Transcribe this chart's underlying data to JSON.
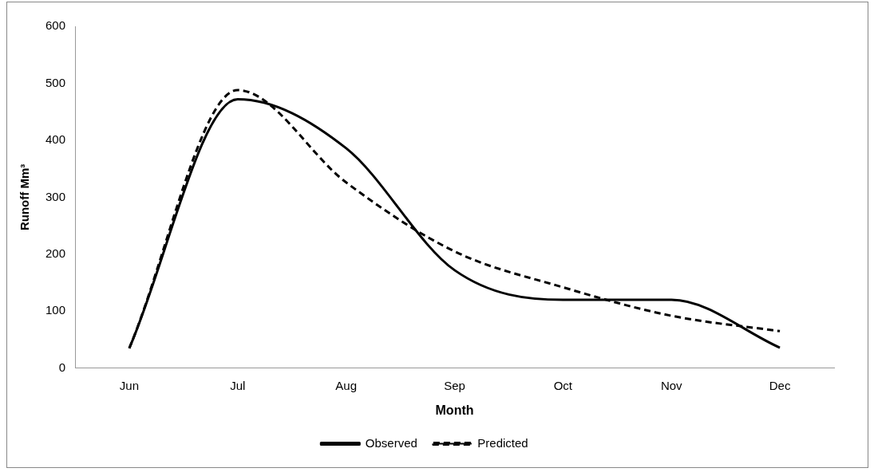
{
  "chart_data": {
    "type": "line",
    "xlabel": "Month",
    "ylabel": "Runoff Mm³",
    "categories": [
      "Jun",
      "Jul",
      "Aug",
      "Sep",
      "Oct",
      "Nov",
      "Dec"
    ],
    "series": [
      {
        "name": "Observed",
        "color": "#000000",
        "line_style": "solid",
        "values": [
          35,
          472,
          386,
          172,
          120,
          120,
          36
        ]
      },
      {
        "name": "Predicted",
        "color": "#000000",
        "line_style": "dashed",
        "values": [
          35,
          488,
          326,
          205,
          142,
          92,
          65
        ]
      }
    ],
    "ylim": [
      0,
      600
    ],
    "yticks": [
      0,
      100,
      200,
      300,
      400,
      500,
      600
    ],
    "grid": false,
    "legend": "bottom",
    "marker": "none"
  }
}
